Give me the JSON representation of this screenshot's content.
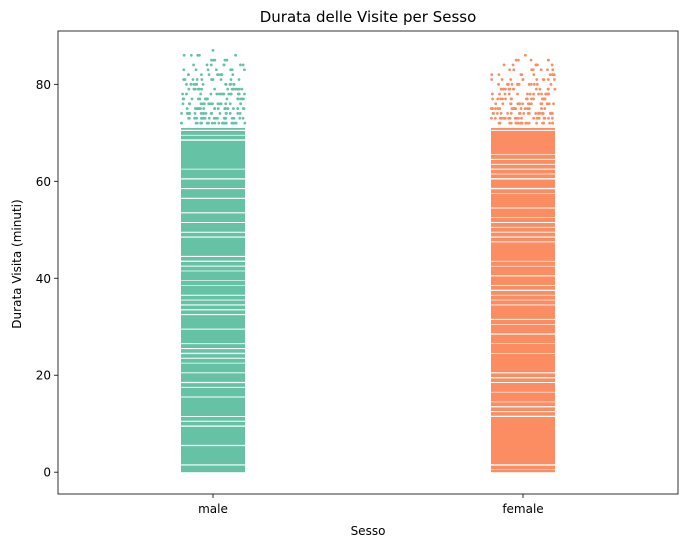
{
  "chart_data": {
    "type": "scatter",
    "title": "Durata delle Visite per Sesso",
    "xlabel": "Sesso",
    "ylabel": "Durata Visita (minuti)",
    "categories": [
      "male",
      "female"
    ],
    "ylim": [
      -4.5,
      91
    ],
    "yticks": [
      0,
      20,
      40,
      60,
      80
    ],
    "grid": false,
    "series": [
      {
        "name": "male",
        "color": "#66c2a5",
        "y_min": 0,
        "dense_max": 71,
        "sparse_max": 86,
        "y_max_outlier": 87
      },
      {
        "name": "female",
        "color": "#fc8d62",
        "y_min": 0,
        "dense_max": 71,
        "sparse_max": 85,
        "y_max_outlier": 86
      }
    ]
  }
}
